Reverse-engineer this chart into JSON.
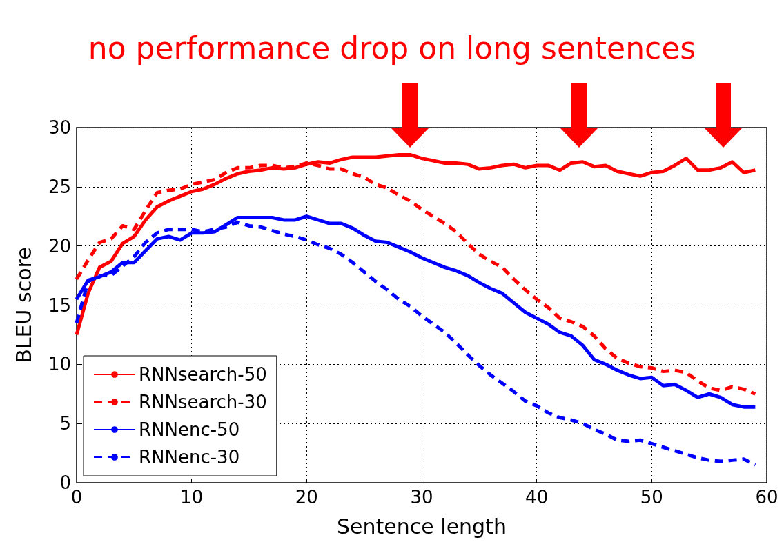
{
  "chart_data": {
    "type": "line",
    "title": "no performance drop on long sentences",
    "xlabel": "Sentence length",
    "ylabel": "BLEU score",
    "x": [
      0,
      1,
      2,
      3,
      4,
      5,
      6,
      7,
      8,
      9,
      10,
      11,
      12,
      13,
      14,
      15,
      16,
      17,
      18,
      19,
      20,
      21,
      22,
      23,
      24,
      25,
      26,
      27,
      28,
      29,
      30,
      31,
      32,
      33,
      34,
      35,
      36,
      37,
      38,
      39,
      40,
      41,
      42,
      43,
      44,
      45,
      46,
      47,
      48,
      49,
      50,
      51,
      52,
      53,
      54,
      55,
      56,
      57,
      58,
      59
    ],
    "series": [
      {
        "name": "RNNsearch-50",
        "color": "#ff0000",
        "line_style": "solid",
        "values": [
          12.5,
          16,
          18.2,
          18.7,
          20.2,
          20.8,
          22.2,
          23.3,
          23.8,
          24.2,
          24.6,
          24.8,
          25.2,
          25.7,
          26.1,
          26.3,
          26.4,
          26.6,
          26.5,
          26.6,
          26.9,
          27.1,
          27.0,
          27.3,
          27.5,
          27.5,
          27.5,
          27.6,
          27.7,
          27.7,
          27.4,
          27.2,
          27.0,
          27.0,
          26.9,
          26.5,
          26.6,
          26.8,
          26.9,
          26.6,
          26.8,
          26.8,
          26.4,
          27.0,
          27.1,
          26.7,
          26.8,
          26.3,
          26.1,
          25.9,
          26.2,
          26.3,
          26.8,
          27.4,
          26.4,
          26.4,
          26.6,
          27.1,
          26.2,
          26.4
        ]
      },
      {
        "name": "RNNsearch-30",
        "color": "#ff0000",
        "line_style": "dashed",
        "values": [
          17.2,
          18.8,
          20.3,
          20.6,
          21.7,
          21.4,
          23.0,
          24.5,
          24.7,
          24.8,
          25.2,
          25.4,
          25.6,
          26.2,
          26.6,
          26.6,
          26.8,
          26.8,
          26.6,
          26.7,
          27.0,
          26.8,
          26.5,
          26.5,
          26.1,
          25.8,
          25.2,
          24.9,
          24.3,
          23.8,
          23.1,
          22.5,
          21.9,
          21.2,
          20.2,
          19.3,
          18.7,
          18.2,
          17.2,
          16.3,
          15.5,
          14.8,
          13.9,
          13.6,
          13.2,
          12.4,
          11.3,
          10.5,
          10.1,
          9.8,
          9.7,
          9.4,
          9.5,
          9.3,
          8.6,
          8.0,
          7.8,
          8.1,
          7.9,
          7.5
        ]
      },
      {
        "name": "RNNenc-50",
        "color": "#0000ff",
        "line_style": "solid",
        "values": [
          15.5,
          17.1,
          17.4,
          17.8,
          18.6,
          18.6,
          19.6,
          20.6,
          20.8,
          20.5,
          21.1,
          21.1,
          21.2,
          21.8,
          22.4,
          22.4,
          22.4,
          22.4,
          22.2,
          22.2,
          22.5,
          22.2,
          21.9,
          21.9,
          21.5,
          20.9,
          20.4,
          20.3,
          19.9,
          19.5,
          19.0,
          18.6,
          18.2,
          17.9,
          17.5,
          16.9,
          16.4,
          16.0,
          15.2,
          14.4,
          13.9,
          13.4,
          12.7,
          12.4,
          11.6,
          10.4,
          10.0,
          9.5,
          9.1,
          8.8,
          8.9,
          8.2,
          8.3,
          7.8,
          7.2,
          7.5,
          7.2,
          6.6,
          6.4,
          6.4
        ]
      },
      {
        "name": "RNNenc-30",
        "color": "#0000ff",
        "line_style": "dashed",
        "values": [
          13.5,
          17.0,
          17.5,
          17.5,
          18.3,
          19.1,
          20.3,
          21.1,
          21.4,
          21.4,
          21.4,
          21.2,
          21.4,
          21.6,
          22.0,
          21.7,
          21.6,
          21.3,
          21.0,
          20.8,
          20.5,
          20.1,
          19.8,
          19.3,
          18.6,
          17.8,
          17.0,
          16.3,
          15.5,
          14.9,
          14.1,
          13.4,
          12.7,
          11.8,
          10.8,
          9.9,
          9.1,
          8.4,
          7.7,
          6.9,
          6.5,
          5.9,
          5.5,
          5.3,
          5.0,
          4.5,
          4.1,
          3.6,
          3.5,
          3.6,
          3.3,
          3.0,
          2.7,
          2.4,
          2.1,
          1.9,
          1.8,
          1.9,
          2.0,
          1.5
        ]
      }
    ],
    "xlim": [
      0,
      60
    ],
    "xticks": [
      0,
      10,
      20,
      30,
      40,
      50,
      60
    ],
    "ylim": [
      0,
      30
    ],
    "yticks": [
      0,
      5,
      10,
      15,
      20,
      25,
      30
    ],
    "grid": true,
    "legend": "bottom left",
    "marker": "none"
  }
}
